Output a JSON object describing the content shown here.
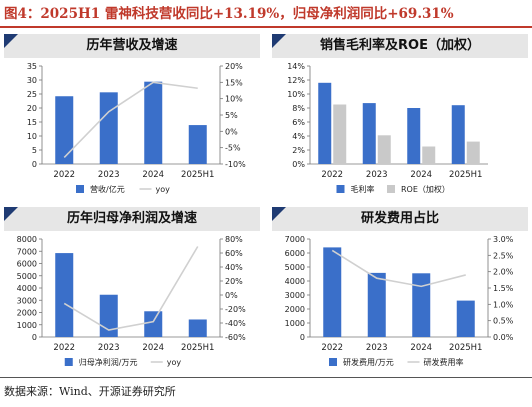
{
  "figure": {
    "title": "图4：2025H1 雷神科技营收同比+13.19%，归母净利润同比+69.31%",
    "source": "数据来源：Wind、开源证券研究所"
  },
  "colors": {
    "bar": "#3a6fc9",
    "bar2": "#c9c9c9",
    "line": "#d0d0d0",
    "accent": "#c0392b",
    "marker": "#1f3b73"
  },
  "chart_data": [
    {
      "id": "revenue",
      "type": "bar",
      "title": "历年营收及增速",
      "categories": [
        "2022",
        "2023",
        "2024",
        "2025H1"
      ],
      "series": [
        {
          "name": "营收/亿元",
          "kind": "bar",
          "axis": "left",
          "values": [
            24.2,
            25.6,
            29.4,
            13.9
          ]
        },
        {
          "name": "yoy",
          "kind": "line",
          "axis": "right",
          "values": [
            -8,
            6,
            15,
            13.19
          ]
        }
      ],
      "left_axis": {
        "min": 0,
        "max": 35,
        "step": 5,
        "ticks": [
          "0",
          "5",
          "10",
          "15",
          "20",
          "25",
          "30",
          "35"
        ]
      },
      "right_axis": {
        "min": -10,
        "max": 20,
        "step": 5,
        "ticks": [
          "-10%",
          "-5%",
          "0%",
          "5%",
          "10%",
          "15%",
          "20%"
        ]
      },
      "legend": "bottom"
    },
    {
      "id": "margin",
      "type": "bar",
      "title": "销售毛利率及ROE（加权）",
      "categories": [
        "2022",
        "2023",
        "2024",
        "2025H1"
      ],
      "series": [
        {
          "name": "毛利率",
          "kind": "bar",
          "axis": "left",
          "values": [
            11.6,
            8.7,
            8.0,
            8.4
          ]
        },
        {
          "name": "ROE（加权）",
          "kind": "bar2",
          "axis": "left",
          "values": [
            8.5,
            4.1,
            2.5,
            3.2
          ]
        }
      ],
      "left_axis": {
        "min": 0,
        "max": 14,
        "step": 2,
        "ticks": [
          "0%",
          "2%",
          "4%",
          "6%",
          "8%",
          "10%",
          "12%",
          "14%"
        ]
      },
      "legend": "bottom"
    },
    {
      "id": "profit",
      "type": "bar",
      "title": "历年归母净利润及增速",
      "categories": [
        "2022",
        "2023",
        "2024",
        "2025H1"
      ],
      "series": [
        {
          "name": "归母净利润/万元",
          "kind": "bar",
          "axis": "left",
          "values": [
            6850,
            3450,
            2100,
            1430
          ]
        },
        {
          "name": "yoy",
          "kind": "line",
          "axis": "right",
          "values": [
            -12,
            -50,
            -38,
            69.31
          ]
        }
      ],
      "left_axis": {
        "min": 0,
        "max": 8000,
        "step": 1000,
        "ticks": [
          "0",
          "1000",
          "2000",
          "3000",
          "4000",
          "5000",
          "6000",
          "7000",
          "8000"
        ]
      },
      "right_axis": {
        "min": -60,
        "max": 80,
        "step": 20,
        "ticks": [
          "-60%",
          "-40%",
          "-20%",
          "0%",
          "20%",
          "40%",
          "60%",
          "80%"
        ]
      },
      "legend": "bottom"
    },
    {
      "id": "rnd",
      "type": "bar",
      "title": "研发费用占比",
      "categories": [
        "2022",
        "2023",
        "2024",
        "2025H1"
      ],
      "series": [
        {
          "name": "研发费用/万元",
          "kind": "bar",
          "axis": "left",
          "values": [
            6400,
            4580,
            4550,
            2600
          ]
        },
        {
          "name": "研发费用率",
          "kind": "line",
          "axis": "right",
          "values": [
            2.65,
            1.8,
            1.55,
            1.9
          ]
        }
      ],
      "left_axis": {
        "min": 0,
        "max": 7000,
        "step": 1000,
        "ticks": [
          "0",
          "1000",
          "2000",
          "3000",
          "4000",
          "5000",
          "6000",
          "7000"
        ]
      },
      "right_axis": {
        "min": 0,
        "max": 3,
        "step": 0.5,
        "ticks": [
          "0.0%",
          "0.5%",
          "1.0%",
          "1.5%",
          "2.0%",
          "2.5%",
          "3.0%"
        ]
      },
      "legend": "bottom"
    }
  ]
}
